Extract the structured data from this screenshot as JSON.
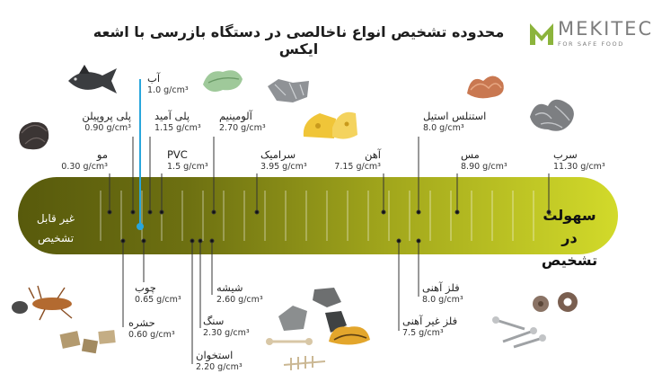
{
  "title": "محدوده تشخیص انواع ناخالصی در دستگاه بازرسی با اشعه ایکس",
  "logo": {
    "word": "MEKITEC",
    "tagline": "FOR SAFE FOOD",
    "color": "#8cb43c"
  },
  "scale": {
    "left_label": [
      "غیر قابل",
      "تشخیص"
    ],
    "right_label": [
      "سهولت در",
      "تشخیص"
    ]
  },
  "top_items": [
    {
      "name": "مو",
      "density": "0.30 g/cm³"
    },
    {
      "name": "پلی پروپیلن",
      "density": "0.90 g/cm³"
    },
    {
      "name": "آب",
      "density": "1.0 g/cm³"
    },
    {
      "name": "پلی آمید",
      "density": "1.15 g/cm³"
    },
    {
      "name": "PVC",
      "density": "1.5 g/cm³"
    },
    {
      "name": "آلومینیم",
      "density": "2.70 g/cm³"
    },
    {
      "name": "سرامیک",
      "density": "3.95 g/cm³"
    },
    {
      "name": "آهن",
      "density": "7.15 g/cm³"
    },
    {
      "name": "استنلس استیل",
      "density": "8.0 g/cm³"
    },
    {
      "name": "مس",
      "density": "8.90 g/cm³"
    },
    {
      "name": "سرب",
      "density": "11.30 g/cm³"
    }
  ],
  "bottom_items": [
    {
      "name": "چوب",
      "density": "0.65 g/cm³"
    },
    {
      "name": "حشره",
      "density": "0.60 g/cm³"
    },
    {
      "name": "شیشه",
      "density": "2.60 g/cm³"
    },
    {
      "name": "سنگ",
      "density": "2.30 g/cm³"
    },
    {
      "name": "استخوان",
      "density": "2.20 g/cm³"
    },
    {
      "name": "فلز آهنی",
      "density": "8.0 g/cm³"
    },
    {
      "name": "فلز غیر آهنی",
      "density": "7.5 g/cm³"
    }
  ],
  "colors": {
    "bar_dark": "#585a0c",
    "bar_light": "#d2da2a",
    "water_marker": "#29a6dc"
  },
  "icons": [
    "fish-icon",
    "lettuce-icon",
    "foil-icon",
    "cheese-icon",
    "copper-wire-icon",
    "steel-shavings-icon",
    "hair-icon",
    "insects-icon",
    "wood-chips-icon",
    "glass-stone-icon",
    "shell-icon",
    "bone-icon",
    "screws-icon",
    "washer-icon"
  ]
}
